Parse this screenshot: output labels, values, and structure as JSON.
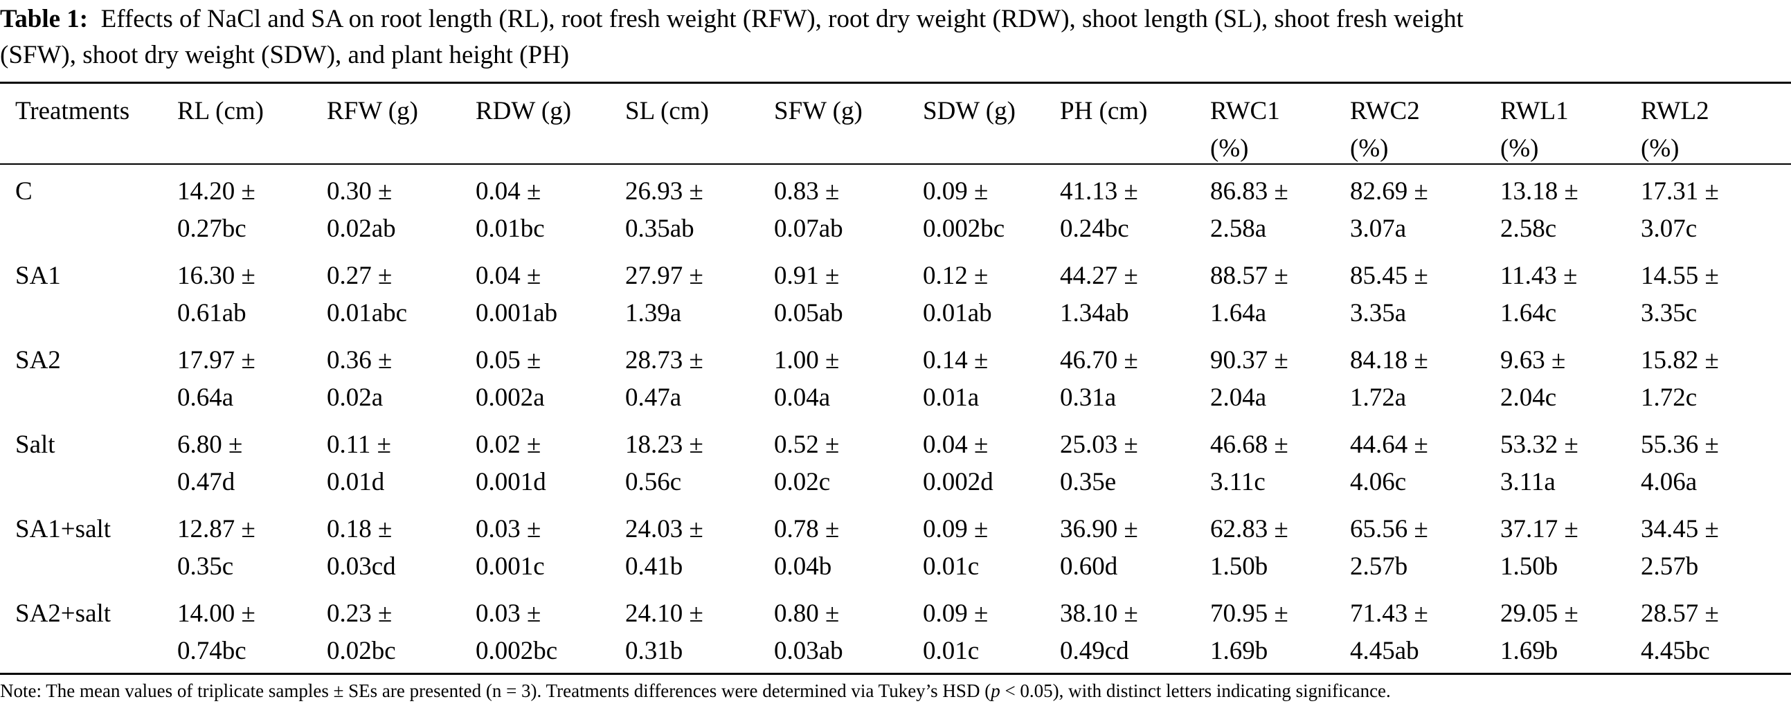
{
  "caption": {
    "label": "Table 1:",
    "line1": "Effects of NaCl and SA on root length (RL), root fresh weight (RFW), root dry weight (RDW), shoot length (SL), shoot fresh weight",
    "line2": "(SFW), shoot dry weight (SDW), and plant height (PH)"
  },
  "headers": [
    [
      "Treatments",
      ""
    ],
    [
      "RL (cm)",
      ""
    ],
    [
      "RFW (g)",
      ""
    ],
    [
      "RDW (g)",
      ""
    ],
    [
      "SL (cm)",
      ""
    ],
    [
      "SFW (g)",
      ""
    ],
    [
      "SDW (g)",
      ""
    ],
    [
      "PH (cm)",
      ""
    ],
    [
      "RWC1",
      "(%)"
    ],
    [
      "RWC2",
      "(%)"
    ],
    [
      "RWL1",
      "(%)"
    ],
    [
      "RWL2",
      "(%)"
    ]
  ],
  "rows": [
    {
      "treatment": "C",
      "cells": [
        [
          "14.20 ±",
          "0.27bc"
        ],
        [
          "0.30 ±",
          "0.02ab"
        ],
        [
          "0.04 ±",
          "0.01bc"
        ],
        [
          "26.93 ±",
          "0.35ab"
        ],
        [
          "0.83 ±",
          "0.07ab"
        ],
        [
          "0.09 ±",
          "0.002bc"
        ],
        [
          "41.13 ±",
          "0.24bc"
        ],
        [
          "86.83 ±",
          "2.58a"
        ],
        [
          "82.69 ±",
          "3.07a"
        ],
        [
          "13.18 ±",
          "2.58c"
        ],
        [
          "17.31 ±",
          "3.07c"
        ]
      ]
    },
    {
      "treatment": "SA1",
      "cells": [
        [
          "16.30 ±",
          "0.61ab"
        ],
        [
          "0.27 ±",
          "0.01abc"
        ],
        [
          "0.04 ±",
          "0.001ab"
        ],
        [
          "27.97 ±",
          "1.39a"
        ],
        [
          "0.91 ±",
          "0.05ab"
        ],
        [
          "0.12 ±",
          "0.01ab"
        ],
        [
          "44.27 ±",
          "1.34ab"
        ],
        [
          "88.57 ±",
          "1.64a"
        ],
        [
          "85.45 ±",
          "3.35a"
        ],
        [
          "11.43 ±",
          "1.64c"
        ],
        [
          "14.55 ±",
          "3.35c"
        ]
      ]
    },
    {
      "treatment": "SA2",
      "cells": [
        [
          "17.97 ±",
          "0.64a"
        ],
        [
          "0.36 ±",
          "0.02a"
        ],
        [
          "0.05 ±",
          "0.002a"
        ],
        [
          "28.73 ±",
          "0.47a"
        ],
        [
          "1.00 ±",
          "0.04a"
        ],
        [
          "0.14 ±",
          "0.01a"
        ],
        [
          "46.70 ±",
          "0.31a"
        ],
        [
          "90.37 ±",
          "2.04a"
        ],
        [
          "84.18 ±",
          "1.72a"
        ],
        [
          "9.63 ±",
          "2.04c"
        ],
        [
          "15.82 ±",
          "1.72c"
        ]
      ]
    },
    {
      "treatment": "Salt",
      "cells": [
        [
          "6.80 ±",
          "0.47d"
        ],
        [
          "0.11 ±",
          "0.01d"
        ],
        [
          "0.02 ±",
          "0.001d"
        ],
        [
          "18.23 ±",
          "0.56c"
        ],
        [
          "0.52 ±",
          "0.02c"
        ],
        [
          "0.04 ±",
          "0.002d"
        ],
        [
          "25.03 ±",
          "0.35e"
        ],
        [
          "46.68 ±",
          "3.11c"
        ],
        [
          "44.64 ±",
          "4.06c"
        ],
        [
          "53.32 ±",
          "3.11a"
        ],
        [
          "55.36 ±",
          "4.06a"
        ]
      ]
    },
    {
      "treatment": "SA1+salt",
      "cells": [
        [
          "12.87 ±",
          "0.35c"
        ],
        [
          "0.18 ±",
          "0.03cd"
        ],
        [
          "0.03 ±",
          "0.001c"
        ],
        [
          "24.03 ±",
          "0.41b"
        ],
        [
          "0.78 ±",
          "0.04b"
        ],
        [
          "0.09 ±",
          "0.01c"
        ],
        [
          "36.90 ±",
          "0.60d"
        ],
        [
          "62.83 ±",
          "1.50b"
        ],
        [
          "65.56 ±",
          "2.57b"
        ],
        [
          "37.17 ±",
          "1.50b"
        ],
        [
          "34.45 ±",
          "2.57b"
        ]
      ]
    },
    {
      "treatment": "SA2+salt",
      "cells": [
        [
          "14.00 ±",
          "0.74bc"
        ],
        [
          "0.23 ±",
          "0.02bc"
        ],
        [
          "0.03 ±",
          "0.002bc"
        ],
        [
          "24.10 ±",
          "0.31b"
        ],
        [
          "0.80 ±",
          "0.03ab"
        ],
        [
          "0.09 ±",
          "0.01c"
        ],
        [
          "38.10 ±",
          "0.49cd"
        ],
        [
          "70.95 ±",
          "1.69b"
        ],
        [
          "71.43 ±",
          "4.45ab"
        ],
        [
          "29.05 ±",
          "1.69b"
        ],
        [
          "28.57 ±",
          "4.45bc"
        ]
      ]
    }
  ],
  "note": {
    "prefix": "Note: The mean values of triplicate samples ± SEs are presented (n = 3). Treatments differences were determined via Tukey’s HSD (",
    "p": "p",
    "suffix": " < 0.05), with distinct letters indicating significance."
  }
}
